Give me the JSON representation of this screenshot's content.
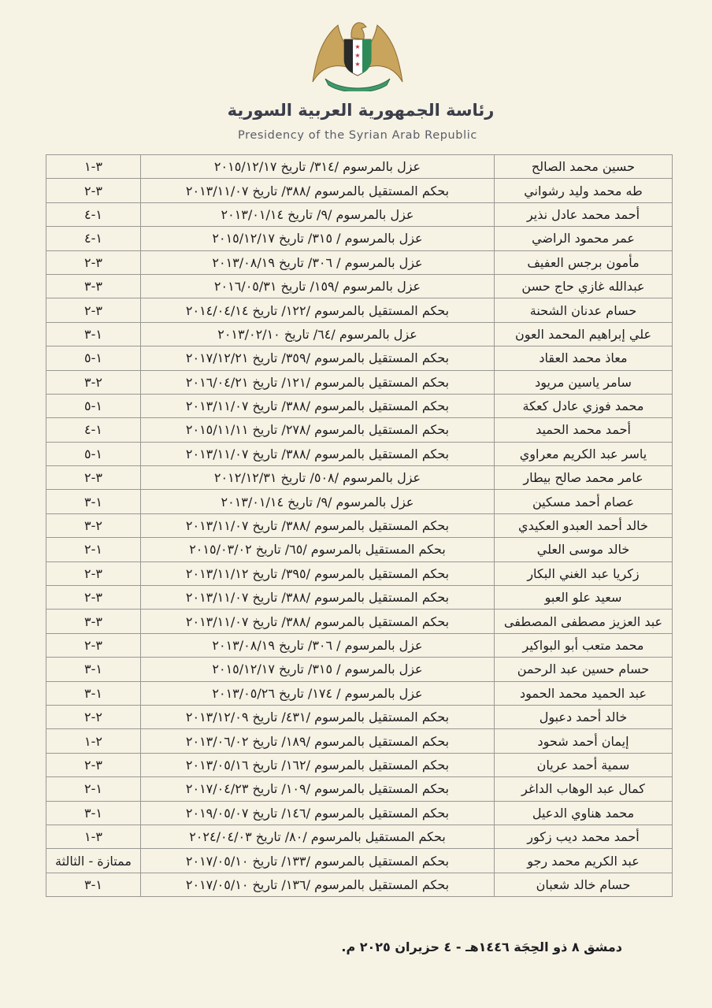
{
  "header": {
    "emblem": "syrian-eagle-emblem",
    "title_ar": "رئاسة الجمهورية العربية السورية",
    "title_en": "Presidency of the Syrian Arab Republic"
  },
  "colors": {
    "paper": "#f6f2e4",
    "emblem_gold": "#c9a45c",
    "flag_green": "#2e8b57",
    "ribbon_green": "#3f9a6a",
    "star_red": "#c8322f"
  },
  "table": {
    "rows": [
      {
        "name": "حسين محمد الصالح",
        "decree": "عزل بالمرسوم /٣١٤/ تاريخ ٢٠١٥/١٢/١٧",
        "grade": "٣-١"
      },
      {
        "name": "طه محمد وليد رشواني",
        "decree": "بحكم المستقيل بالمرسوم /٣٨٨/ تاريخ ٢٠١٣/١١/٠٧",
        "grade": "٣-٢"
      },
      {
        "name": "أحمد محمد عادل نذير",
        "decree": "عزل بالمرسوم /٩/ تاريخ ٢٠١٣/٠١/١٤",
        "grade": "١-٤"
      },
      {
        "name": "عمر محمود الراضي",
        "decree": "عزل بالمرسوم / ٣١٥/ تاريخ ٢٠١٥/١٢/١٧",
        "grade": "١-٤"
      },
      {
        "name": "مأمون برجس العفيف",
        "decree": "عزل بالمرسوم / ٣٠٦/ تاريخ ٢٠١٣/٠٨/١٩",
        "grade": "٣-٢"
      },
      {
        "name": "عبدالله غازي حاج حسن",
        "decree": "عزل بالمرسوم /١٥٩/ تاريخ ٢٠١٦/٠٥/٣١",
        "grade": "٣-٣"
      },
      {
        "name": "حسام عدنان الشحنة",
        "decree": "بحكم المستقيل بالمرسوم /١٢٢/ تاريخ ٢٠١٤/٠٤/١٤",
        "grade": "٣-٢"
      },
      {
        "name": "علي إبراهيم المحمد العون",
        "decree": "عزل بالمرسوم /٦٤/ تاريخ ٢٠١٣/٠٢/١٠",
        "grade": "١-٣"
      },
      {
        "name": "معاذ محمد العقاد",
        "decree": "بحكم المستقيل بالمرسوم /٣٥٩/ تاريخ ٢٠١٧/١٢/٢١",
        "grade": "١-٥"
      },
      {
        "name": "سامر ياسين مريود",
        "decree": "بحكم المستقيل بالمرسوم /١٢١/ تاريخ ٢٠١٦/٠٤/٢١",
        "grade": "٢-٣"
      },
      {
        "name": "محمد فوزي عادل كعكة",
        "decree": "بحكم المستقيل بالمرسوم /٣٨٨/ تاريخ ٢٠١٣/١١/٠٧",
        "grade": "١-٥"
      },
      {
        "name": "أحمد محمد الحميد",
        "decree": "بحكم المستقيل بالمرسوم /٢٧٨/ تاريخ ٢٠١٥/١١/١١",
        "grade": "١-٤"
      },
      {
        "name": "ياسر عبد الكريم معراوي",
        "decree": "بحكم المستقيل بالمرسوم /٣٨٨/ تاريخ ٢٠١٣/١١/٠٧",
        "grade": "١-٥"
      },
      {
        "name": "عامر محمد صالح بيطار",
        "decree": "عزل بالمرسوم /٥٠٨/ تاريخ ٢٠١٢/١٢/٣١",
        "grade": "٣-٢"
      },
      {
        "name": "عصام أحمد مسكين",
        "decree": "عزل بالمرسوم /٩/ تاريخ ٢٠١٣/٠١/١٤",
        "grade": "١-٣"
      },
      {
        "name": "خالد أحمد العبدو العكيدي",
        "decree": "بحكم المستقيل بالمرسوم /٣٨٨/ تاريخ ٢٠١٣/١١/٠٧",
        "grade": "٢-٣"
      },
      {
        "name": "خالد موسى العلي",
        "decree": "بحكم المستقيل بالمرسوم /٦٥/ تاريخ ٢٠١٥/٠٣/٠٢",
        "grade": "١-٢"
      },
      {
        "name": "زكريا عبد الغني البكار",
        "decree": "بحكم المستقيل بالمرسوم /٣٩٥/ تاريخ ٢٠١٣/١١/١٢",
        "grade": "٣-٢"
      },
      {
        "name": "سعيد علو العبو",
        "decree": "بحكم المستقيل بالمرسوم /٣٨٨/ تاريخ ٢٠١٣/١١/٠٧",
        "grade": "٣-٢"
      },
      {
        "name": "عبد العزيز مصطفى المصطفى",
        "decree": "بحكم المستقيل بالمرسوم /٣٨٨/ تاريخ ٢٠١٣/١١/٠٧",
        "grade": "٣-٣"
      },
      {
        "name": "محمد متعب أبو البواكير",
        "decree": "عزل بالمرسوم / ٣٠٦/ تاريخ ٢٠١٣/٠٨/١٩",
        "grade": "٣-٢"
      },
      {
        "name": "حسام حسين عبد الرحمن",
        "decree": "عزل بالمرسوم / ٣١٥/ تاريخ ٢٠١٥/١٢/١٧",
        "grade": "١-٣"
      },
      {
        "name": "عبد الحميد محمد الحمود",
        "decree": "عزل بالمرسوم / ١٧٤/ تاريخ ٢٠١٣/٠٥/٢٦",
        "grade": "١-٣"
      },
      {
        "name": "خالد أحمد دعبول",
        "decree": "بحكم المستقيل بالمرسوم /٤٣١/ تاريخ ٢٠١٣/١٢/٠٩",
        "grade": "٢-٢"
      },
      {
        "name": "إيمان أحمد شحود",
        "decree": "بحكم المستقيل بالمرسوم /١٨٩/ تاريخ ٢٠١٣/٠٦/٠٢",
        "grade": "٢-١"
      },
      {
        "name": "سمية أحمد عريان",
        "decree": "بحكم المستقيل بالمرسوم /١٦٢/ تاريخ ٢٠١٣/٠٥/١٦",
        "grade": "٣-٢"
      },
      {
        "name": "كمال عبد الوهاب الداغر",
        "decree": "بحكم المستقيل بالمرسوم /١٠٩/ تاريخ ٢٠١٧/٠٤/٢٣",
        "grade": "١-٢"
      },
      {
        "name": "محمد هناوي الدعيل",
        "decree": "بحكم المستقيل بالمرسوم /١٤٦/ تاريخ ٢٠١٩/٠٥/٠٧",
        "grade": "١-٣"
      },
      {
        "name": "أحمد محمد ديب زكور",
        "decree": "بحكم المستقيل بالمرسوم /٨٠/ تاريخ ٢٠٢٤/٠٤/٠٣",
        "grade": "٣-١"
      },
      {
        "name": "عبد الكريم محمد رجو",
        "decree": "بحكم المستقيل بالمرسوم /١٣٣/ تاريخ ٢٠١٧/٠٥/١٠",
        "grade": "ممتازة - الثالثة"
      },
      {
        "name": "حسام خالد شعبان",
        "decree": "بحكم المستقيل بالمرسوم /١٣٦/ تاريخ ٢٠١٧/٠٥/١٠",
        "grade": "١-٣"
      }
    ]
  },
  "footer": {
    "date_line": "دمشق ٨ ذو الحِجَة ١٤٤٦هـ - ٤ حزيران ٢٠٢٥ م."
  }
}
